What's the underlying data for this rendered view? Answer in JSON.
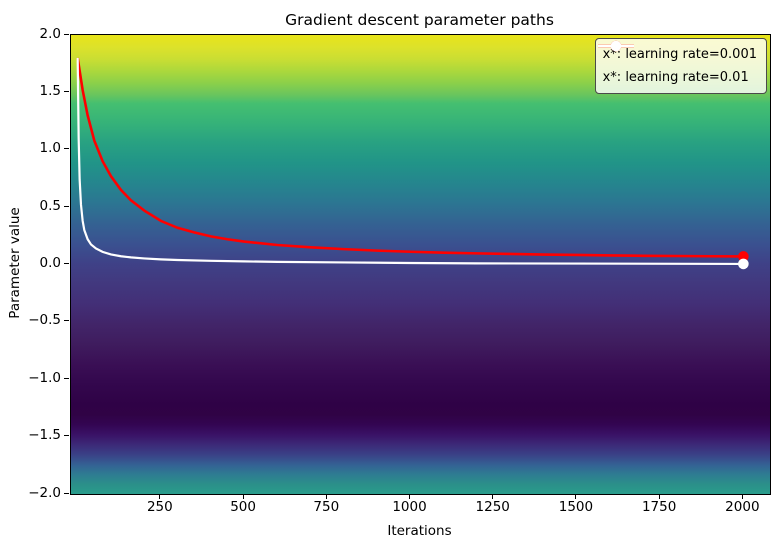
{
  "title": "Gradient descent parameter paths",
  "axes": {
    "xlabel": "Iterations",
    "ylabel": "Parameter value",
    "xlim": [
      -20,
      2080
    ],
    "ylim": [
      -2.0,
      2.0
    ],
    "xtick_values": [
      250,
      500,
      750,
      1000,
      1250,
      1500,
      1750,
      2000
    ],
    "xtick_labels": [
      "250",
      "500",
      "750",
      "1000",
      "1250",
      "1500",
      "1750",
      "2000"
    ],
    "ytick_values": [
      2.0,
      1.5,
      1.0,
      0.5,
      0.0,
      -0.5,
      -1.0,
      -1.5,
      -2.0
    ],
    "ytick_labels": [
      "2.0",
      "1.5",
      "1.0",
      "0.5",
      "0.0",
      "−0.5",
      "−1.0",
      "−1.5",
      "−2.0"
    ]
  },
  "legend": {
    "entries": [
      {
        "label": "x*: learning rate=0.001",
        "color": "#ff0000",
        "linewidth": 2.6
      },
      {
        "label": "x*: learning rate=0.01",
        "color": "#ffffff",
        "linewidth": 2.2
      }
    ]
  },
  "chart_data": {
    "type": "line",
    "title": "Gradient descent parameter paths",
    "xlabel": "Iterations",
    "ylabel": "Parameter value",
    "xlim": [
      -20,
      2080
    ],
    "ylim": [
      -2.0,
      2.0
    ],
    "grid": false,
    "legend_position": "upper right",
    "background": {
      "type": "viridis-vertical-gradient",
      "stops": [
        [
          0.0,
          "#e8e419"
        ],
        [
          0.026,
          "#dde22a"
        ],
        [
          0.053,
          "#c9de33"
        ],
        [
          0.079,
          "#abd83c"
        ],
        [
          0.105,
          "#8bd04a"
        ],
        [
          0.131,
          "#68c55e"
        ],
        [
          0.149,
          "#45bf70"
        ],
        [
          0.193,
          "#35b279"
        ],
        [
          0.236,
          "#28a182"
        ],
        [
          0.28,
          "#219488"
        ],
        [
          0.324,
          "#25858e"
        ],
        [
          0.368,
          "#2c7592"
        ],
        [
          0.411,
          "#346292"
        ],
        [
          0.455,
          "#3a5190"
        ],
        [
          0.499,
          "#3f4187"
        ],
        [
          0.543,
          "#42387e"
        ],
        [
          0.586,
          "#432f77"
        ],
        [
          0.63,
          "#422569"
        ],
        [
          0.674,
          "#3f1c5e"
        ],
        [
          0.718,
          "#3a0f55"
        ],
        [
          0.761,
          "#33074d"
        ],
        [
          0.805,
          "#2f0246"
        ],
        [
          0.827,
          "#300345"
        ],
        [
          0.849,
          "#330552"
        ],
        [
          0.871,
          "#3a1266"
        ],
        [
          0.893,
          "#3c2a78"
        ],
        [
          0.915,
          "#3a4287"
        ],
        [
          0.937,
          "#346294"
        ],
        [
          0.958,
          "#2e7d92"
        ],
        [
          0.98,
          "#2b9089"
        ],
        [
          1.0,
          "#2a9d8c"
        ]
      ]
    },
    "series": [
      {
        "name": "x*: learning rate=0.001",
        "color": "#ff0000",
        "linewidth": 2.6,
        "marker": "o",
        "marker_radius": 5.3,
        "markevery": "last",
        "points": [
          [
            0,
            1.8
          ],
          [
            15,
            1.52
          ],
          [
            30,
            1.3
          ],
          [
            50,
            1.08
          ],
          [
            75,
            0.9
          ],
          [
            100,
            0.77
          ],
          [
            130,
            0.65
          ],
          [
            160,
            0.56
          ],
          [
            200,
            0.47
          ],
          [
            250,
            0.38
          ],
          [
            300,
            0.32
          ],
          [
            350,
            0.28
          ],
          [
            400,
            0.245
          ],
          [
            450,
            0.22
          ],
          [
            500,
            0.2
          ],
          [
            600,
            0.17
          ],
          [
            700,
            0.15
          ],
          [
            800,
            0.134
          ],
          [
            900,
            0.121
          ],
          [
            1000,
            0.111
          ],
          [
            1100,
            0.103
          ],
          [
            1200,
            0.097
          ],
          [
            1300,
            0.092
          ],
          [
            1400,
            0.087
          ],
          [
            1500,
            0.083
          ],
          [
            1600,
            0.079
          ],
          [
            1700,
            0.076
          ],
          [
            1800,
            0.074
          ],
          [
            1900,
            0.072
          ],
          [
            2000,
            0.07
          ]
        ]
      },
      {
        "name": "x*: learning rate=0.01",
        "color": "#ffffff",
        "linewidth": 2.2,
        "marker": "o",
        "marker_radius": 5.3,
        "markevery": "last",
        "points": [
          [
            0,
            1.8
          ],
          [
            3,
            1.1
          ],
          [
            6,
            0.74
          ],
          [
            10,
            0.52
          ],
          [
            15,
            0.38
          ],
          [
            20,
            0.3
          ],
          [
            30,
            0.22
          ],
          [
            40,
            0.175
          ],
          [
            55,
            0.14
          ],
          [
            75,
            0.11
          ],
          [
            100,
            0.088
          ],
          [
            130,
            0.072
          ],
          [
            160,
            0.062
          ],
          [
            200,
            0.053
          ],
          [
            250,
            0.045
          ],
          [
            300,
            0.039
          ],
          [
            400,
            0.032
          ],
          [
            500,
            0.027
          ],
          [
            600,
            0.023
          ],
          [
            800,
            0.018
          ],
          [
            1000,
            0.013
          ],
          [
            1200,
            0.01
          ],
          [
            1500,
            0.008
          ],
          [
            2000,
            0.005
          ]
        ]
      }
    ]
  }
}
